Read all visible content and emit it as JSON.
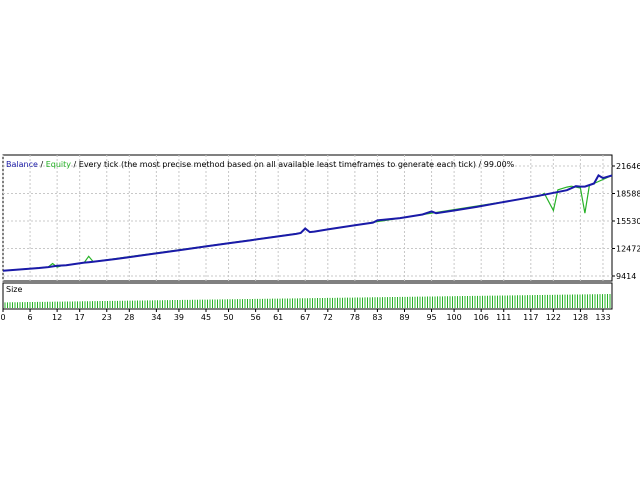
{
  "legend": {
    "balance": "Balance",
    "sep1": " / ",
    "equity": "Equity",
    "sep2": " / ",
    "model": "Every tick (the most precise method based on all available least timeframes to generate each tick)",
    "sep3": " / ",
    "quality": "99.00%"
  },
  "colors": {
    "balance": "#1a1aa8",
    "equity": "#27b227",
    "size_bars": "#27b227",
    "grid": "#c8c8c8",
    "frame": "#000000"
  },
  "chart_data": [
    {
      "type": "line",
      "title": "",
      "xlabel": "",
      "ylabel": "",
      "yticks": [
        "21646",
        "18588",
        "15530",
        "12472",
        "9414"
      ],
      "ylim": [
        9414,
        21646
      ],
      "xlim": [
        0,
        135
      ],
      "grid": true,
      "legend_placement": "top-left",
      "series": [
        {
          "name": "Balance",
          "x": [
            0,
            8,
            10,
            12,
            14,
            18,
            19,
            20,
            25,
            30,
            35,
            40,
            45,
            50,
            55,
            60,
            65,
            66,
            67,
            68,
            69,
            72,
            78,
            82,
            83,
            88,
            93,
            95,
            96,
            100,
            105,
            110,
            115,
            120,
            125,
            127,
            128,
            129,
            131,
            132,
            133,
            135
          ],
          "y": [
            10000,
            10300,
            10400,
            10550,
            10600,
            10900,
            10950,
            11000,
            11300,
            11650,
            12000,
            12350,
            12700,
            13050,
            13400,
            13750,
            14100,
            14200,
            14700,
            14300,
            14350,
            14600,
            15050,
            15350,
            15600,
            15850,
            16250,
            16600,
            16400,
            16700,
            17100,
            17550,
            18000,
            18450,
            18950,
            19400,
            19350,
            19350,
            19700,
            20600,
            20300,
            20600
          ]
        },
        {
          "name": "Equity",
          "x": [
            0,
            10,
            11,
            12,
            13,
            14,
            18,
            19,
            20,
            66,
            67,
            68,
            69,
            119,
            120,
            122,
            123,
            125,
            126,
            128,
            129,
            130,
            131,
            135
          ],
          "y": [
            10000,
            10400,
            10800,
            10400,
            10550,
            10600,
            10900,
            11600,
            11000,
            14200,
            14700,
            14300,
            14350,
            18300,
            18600,
            16700,
            19000,
            19300,
            19400,
            19200,
            16400,
            19500,
            19700,
            20600
          ]
        }
      ]
    },
    {
      "type": "bar",
      "title": "Size",
      "xticks": [
        "0",
        "6",
        "12",
        "17",
        "23",
        "28",
        "34",
        "39",
        "45",
        "50",
        "56",
        "61",
        "67",
        "72",
        "78",
        "83",
        "89",
        "95",
        "100",
        "106",
        "111",
        "117",
        "122",
        "128",
        "133"
      ],
      "xlim": [
        0,
        135
      ],
      "series": [
        {
          "name": "Size",
          "x_range": [
            0,
            135
          ],
          "values_trend": [
            0.4,
            1.0
          ]
        }
      ]
    }
  ]
}
